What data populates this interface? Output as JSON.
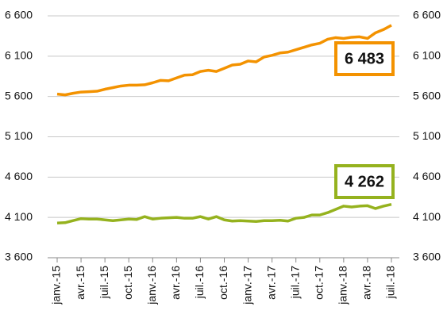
{
  "chart_data": {
    "type": "line",
    "categories": [
      "janv.-15",
      null,
      null,
      "avr.-15",
      null,
      null,
      "juil.-15",
      null,
      null,
      "oct.-15",
      null,
      null,
      "janv.-16",
      null,
      null,
      "avr.-16",
      null,
      null,
      "juil.-16",
      null,
      null,
      "oct.-16",
      null,
      null,
      "janv.-17",
      null,
      null,
      "avr.-17",
      null,
      null,
      "juil.-17",
      null,
      null,
      "oct.-17",
      null,
      null,
      "janv.-18",
      null,
      null,
      "avr.-18",
      null,
      null,
      "juil.-18"
    ],
    "series": [
      {
        "name": null,
        "color": "#f39200",
        "values": [
          5630,
          5620,
          5640,
          5655,
          5660,
          5665,
          5690,
          5710,
          5730,
          5740,
          5740,
          5745,
          5770,
          5800,
          5795,
          5830,
          5865,
          5870,
          5910,
          5925,
          5910,
          5950,
          5990,
          6000,
          6040,
          6030,
          6090,
          6110,
          6140,
          6150,
          6180,
          6210,
          6240,
          6260,
          6310,
          6330,
          6320,
          6335,
          6340,
          6320,
          6390,
          6430,
          6483
        ],
        "value_labels": [
          null,
          null,
          null,
          null,
          null,
          null,
          null,
          null,
          null,
          null,
          null,
          null,
          null,
          null,
          null,
          null,
          null,
          null,
          null,
          null,
          null,
          null,
          null,
          null,
          null,
          null,
          null,
          null,
          null,
          null,
          null,
          null,
          null,
          null,
          null,
          null,
          null,
          null,
          null,
          null,
          null,
          null,
          "6 483"
        ]
      },
      {
        "name": null,
        "color": "#95b21e",
        "values": [
          4030,
          4035,
          4060,
          4085,
          4080,
          4080,
          4070,
          4060,
          4070,
          4080,
          4075,
          4110,
          4080,
          4090,
          4095,
          4100,
          4090,
          4090,
          4110,
          4080,
          4110,
          4070,
          4055,
          4060,
          4055,
          4050,
          4060,
          4060,
          4065,
          4055,
          4090,
          4100,
          4130,
          4130,
          4160,
          4200,
          4240,
          4230,
          4240,
          4245,
          4210,
          4240,
          4262
        ],
        "value_labels": [
          null,
          null,
          null,
          null,
          null,
          null,
          null,
          null,
          null,
          null,
          null,
          null,
          null,
          null,
          null,
          null,
          null,
          null,
          null,
          null,
          null,
          null,
          null,
          null,
          null,
          null,
          null,
          null,
          null,
          null,
          null,
          null,
          null,
          null,
          null,
          null,
          null,
          null,
          null,
          null,
          null,
          null,
          "4 262"
        ]
      }
    ],
    "ylim": [
      3600,
      6600
    ],
    "yticks": [
      {
        "value": 3600,
        "label": "3 600"
      },
      {
        "value": 4100,
        "label": "4 100"
      },
      {
        "value": 4600,
        "label": "4 600"
      },
      {
        "value": 5100,
        "label": "5 100"
      },
      {
        "value": 5600,
        "label": "5 600"
      },
      {
        "value": 6100,
        "label": "6 100"
      },
      {
        "value": 6600,
        "label": "6 600"
      }
    ],
    "y2lim": [
      3600,
      6600
    ],
    "y2ticks": [
      {
        "value": 3600,
        "label": "3 600"
      },
      {
        "value": 4100,
        "label": "4 100"
      },
      {
        "value": 4600,
        "label": "4 600"
      },
      {
        "value": 5100,
        "label": "5 100"
      },
      {
        "value": 5600,
        "label": "5 600"
      },
      {
        "value": 6100,
        "label": "6 100"
      },
      {
        "value": 6600,
        "label": "6 600"
      }
    ],
    "grid": true
  }
}
